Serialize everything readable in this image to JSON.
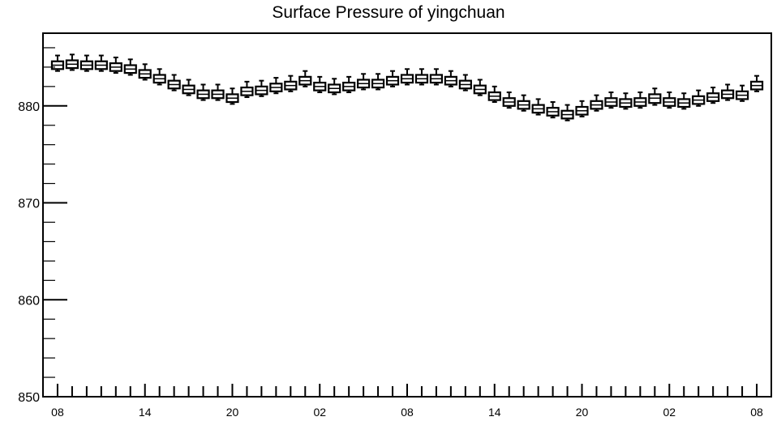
{
  "chart_data": {
    "type": "box",
    "title": "Surface Pressure of yingchuan",
    "xlabel": "",
    "ylabel": "",
    "ylim": [
      850,
      887.5
    ],
    "y_ticks": [
      "850",
      "860",
      "870",
      "880"
    ],
    "x_ticks": [
      "08",
      "14",
      "20",
      "02",
      "08",
      "14",
      "20",
      "02",
      "08"
    ],
    "x_tick_hours": [
      0,
      6,
      12,
      18,
      24,
      30,
      36,
      42,
      48
    ],
    "x_hours": [
      0,
      1,
      2,
      3,
      4,
      5,
      6,
      7,
      8,
      9,
      10,
      11,
      12,
      13,
      14,
      15,
      16,
      17,
      18,
      19,
      20,
      21,
      22,
      23,
      24,
      25,
      26,
      27,
      28,
      29,
      30,
      31,
      32,
      33,
      34,
      35,
      36,
      37,
      38,
      39,
      40,
      41,
      42,
      43,
      44,
      45,
      46,
      47,
      48
    ],
    "median": [
      884.2,
      884.3,
      884.2,
      884.2,
      884.0,
      883.8,
      883.3,
      882.8,
      882.2,
      881.7,
      881.2,
      881.2,
      880.8,
      881.5,
      881.6,
      881.9,
      882.1,
      882.6,
      882.0,
      881.8,
      882.0,
      882.3,
      882.3,
      882.6,
      882.8,
      882.8,
      882.8,
      882.6,
      882.2,
      881.7,
      881.0,
      880.4,
      880.1,
      879.7,
      879.4,
      879.1,
      879.5,
      880.1,
      880.4,
      880.3,
      880.4,
      880.8,
      880.4,
      880.3,
      880.6,
      880.9,
      881.2,
      881.1,
      882.1
    ],
    "q1": [
      883.8,
      883.9,
      883.8,
      883.8,
      883.6,
      883.4,
      882.9,
      882.4,
      881.8,
      881.3,
      880.8,
      880.8,
      880.4,
      881.1,
      881.2,
      881.5,
      881.7,
      882.2,
      881.6,
      881.4,
      881.6,
      881.9,
      881.9,
      882.2,
      882.4,
      882.4,
      882.4,
      882.2,
      881.8,
      881.3,
      880.6,
      880.0,
      879.7,
      879.3,
      879.0,
      878.7,
      879.1,
      879.7,
      880.0,
      879.9,
      880.0,
      880.3,
      880.0,
      879.9,
      880.2,
      880.5,
      880.8,
      880.7,
      881.7
    ],
    "q3": [
      884.6,
      884.7,
      884.6,
      884.6,
      884.4,
      884.2,
      883.7,
      883.2,
      882.6,
      882.1,
      881.6,
      881.6,
      881.2,
      881.9,
      882.0,
      882.3,
      882.5,
      883.0,
      882.4,
      882.2,
      882.4,
      882.7,
      882.7,
      883.0,
      883.2,
      883.2,
      883.2,
      883.0,
      882.6,
      882.1,
      881.4,
      880.8,
      880.5,
      880.1,
      879.8,
      879.5,
      879.9,
      880.5,
      880.8,
      880.7,
      880.8,
      881.2,
      880.8,
      880.7,
      881.0,
      881.3,
      881.6,
      881.5,
      882.5
    ],
    "whisker_low": [
      883.6,
      883.7,
      883.6,
      883.6,
      883.4,
      883.2,
      882.7,
      882.2,
      881.6,
      881.1,
      880.6,
      880.6,
      880.2,
      880.9,
      881.0,
      881.3,
      881.5,
      882.0,
      881.4,
      881.2,
      881.4,
      881.7,
      881.7,
      882.0,
      882.2,
      882.2,
      882.2,
      882.0,
      881.6,
      881.1,
      880.4,
      879.8,
      879.5,
      879.1,
      878.8,
      878.5,
      878.9,
      879.5,
      879.8,
      879.7,
      879.8,
      880.1,
      879.8,
      879.7,
      880.0,
      880.3,
      880.6,
      880.5,
      881.5
    ],
    "whisker_high": [
      885.2,
      885.3,
      885.2,
      885.2,
      885.0,
      884.8,
      884.3,
      883.8,
      883.2,
      882.7,
      882.2,
      882.2,
      881.8,
      882.5,
      882.6,
      882.9,
      883.1,
      883.6,
      883.0,
      882.8,
      883.0,
      883.3,
      883.3,
      883.6,
      883.8,
      883.8,
      883.8,
      883.6,
      883.2,
      882.7,
      882.0,
      881.4,
      881.1,
      880.7,
      880.4,
      880.1,
      880.5,
      881.1,
      881.4,
      881.3,
      881.4,
      881.8,
      881.4,
      881.3,
      881.6,
      881.9,
      882.2,
      882.1,
      883.1
    ],
    "grid": false,
    "legend": "none"
  }
}
